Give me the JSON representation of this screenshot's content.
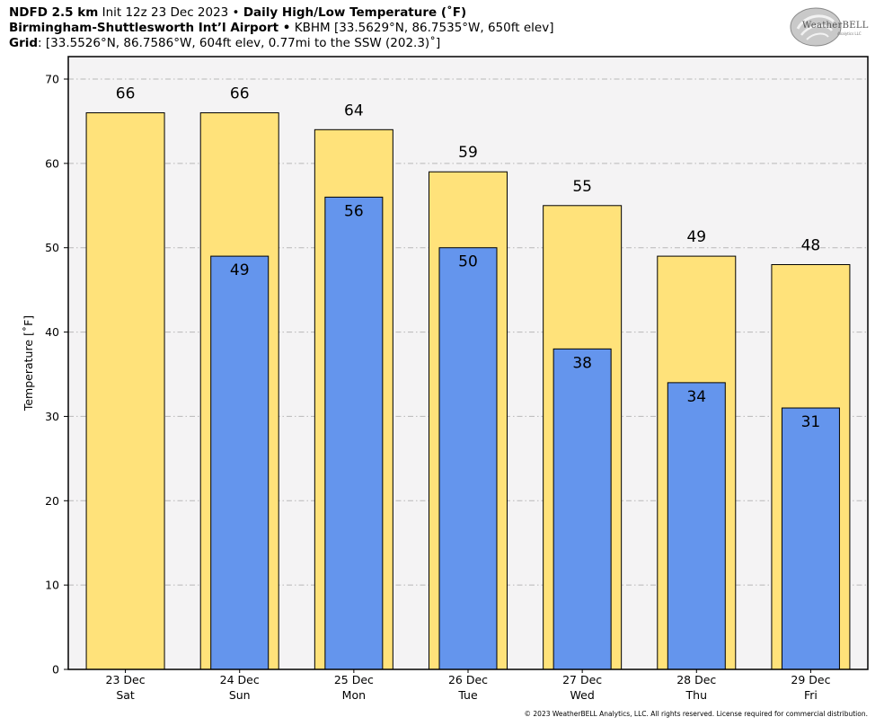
{
  "header": {
    "line1_bold": "NDFD 2.5 km",
    "line1_mid": "Init 12z 23 Dec 2023 •",
    "line1_title": "Daily High/Low Temperature (˚F)",
    "line2_bold": "Birmingham-Shuttlesworth Int’l Airport •",
    "line2_rest": "KBHM [33.5629°N, 86.7535°W, 650ft elev]",
    "line3_bold": "Grid",
    "line3_rest": ": [33.5526°N, 86.7586°W, 604ft elev, 0.77mi to the SSW (202.3)˚]"
  },
  "logo": {
    "text": "WeatherBELL",
    "sub": "Analytics LLC"
  },
  "copyright": "© 2023 WeatherBELL Analytics, LLC. All rights reserved. License required for commercial distribution.",
  "colors": {
    "high": "#ffe27a",
    "low": "#6495ed",
    "plot_bg": "#f4f3f4",
    "grid": "#b8b8b8"
  },
  "chart_data": {
    "type": "bar",
    "ylabel": "Temperature [˚F]",
    "xlabel": "",
    "ylim": [
      0,
      70
    ],
    "yticks": [
      0,
      10,
      20,
      30,
      40,
      50,
      60,
      70
    ],
    "grid": true,
    "categories": [
      "23 Dec",
      "24 Dec",
      "25 Dec",
      "26 Dec",
      "27 Dec",
      "28 Dec",
      "29 Dec"
    ],
    "days": [
      "Sat",
      "Sun",
      "Mon",
      "Tue",
      "Wed",
      "Thu",
      "Fri"
    ],
    "series": [
      {
        "values": [
          66,
          66,
          64,
          59,
          55,
          49,
          48
        ]
      },
      {
        "values": [
          null,
          49,
          56,
          50,
          38,
          34,
          31
        ]
      }
    ]
  }
}
